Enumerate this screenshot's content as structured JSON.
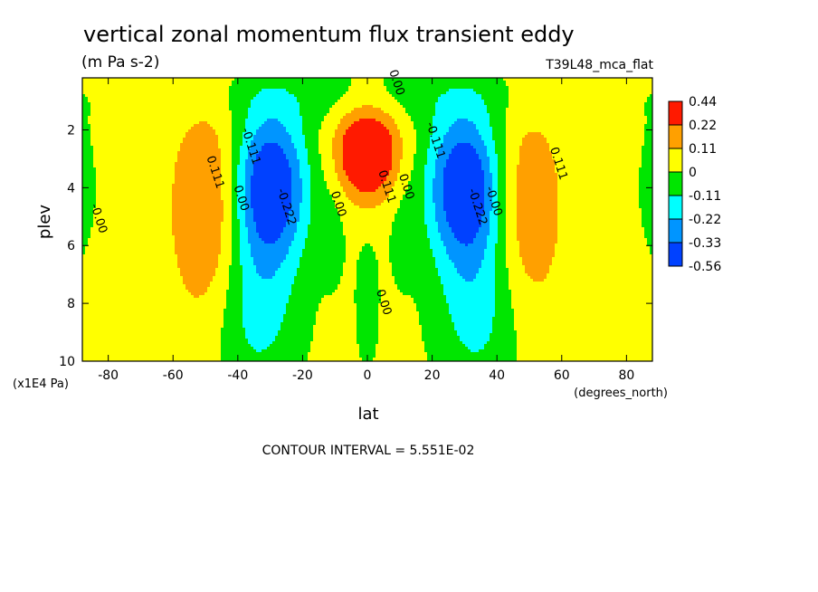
{
  "chart_data": {
    "type": "contour",
    "title": "vertical zonal momentum flux transient eddy",
    "units": "(m Pa s-2)",
    "experiment": "T39L48_mca_flat",
    "xlabel": "lat",
    "xunits": "(degrees_north)",
    "ylabel": "plev",
    "yunits": "(x1E4 Pa)",
    "xlim": [
      -88,
      88
    ],
    "ylim": [
      10,
      0.2
    ],
    "xticks": [
      -80,
      -60,
      -40,
      -20,
      0,
      20,
      40,
      60,
      80
    ],
    "yticks": [
      2,
      4,
      6,
      8,
      10
    ],
    "contour_interval_text": "CONTOUR INTERVAL = 5.551E-02",
    "levels": [
      "0.44",
      "0.22",
      "0.11",
      "0",
      "-0.11",
      "-0.22",
      "-0.33",
      "-0.56"
    ],
    "colors": [
      "#ff1a00",
      "#ffa000",
      "#ffff00",
      "#00e600",
      "#00ffff",
      "#0095ff",
      "#0041ff"
    ],
    "contour_labels": [
      {
        "text": "0.00",
        "lat": 8,
        "plev": 0.4
      },
      {
        "text": "-0.00",
        "lat": -84,
        "plev": 5.1
      },
      {
        "text": "0.111",
        "lat": -48,
        "plev": 3.5
      },
      {
        "text": "0.00",
        "lat": -40,
        "plev": 4.4
      },
      {
        "text": "-0.111",
        "lat": -37,
        "plev": 2.6
      },
      {
        "text": "-0.222",
        "lat": -26,
        "plev": 4.7
      },
      {
        "text": "0.00",
        "lat": -10,
        "plev": 4.6
      },
      {
        "text": "0.111",
        "lat": 5,
        "plev": 4.0
      },
      {
        "text": "0.00",
        "lat": 11,
        "plev": 4.0
      },
      {
        "text": "-0.111",
        "lat": 20,
        "plev": 2.4
      },
      {
        "text": "-0.222",
        "lat": 33,
        "plev": 4.7
      },
      {
        "text": "-0.00",
        "lat": 38,
        "plev": 4.5
      },
      {
        "text": "0.111",
        "lat": 58,
        "plev": 3.2
      },
      {
        "text": "0.00",
        "lat": 4,
        "plev": 8.0
      }
    ]
  }
}
